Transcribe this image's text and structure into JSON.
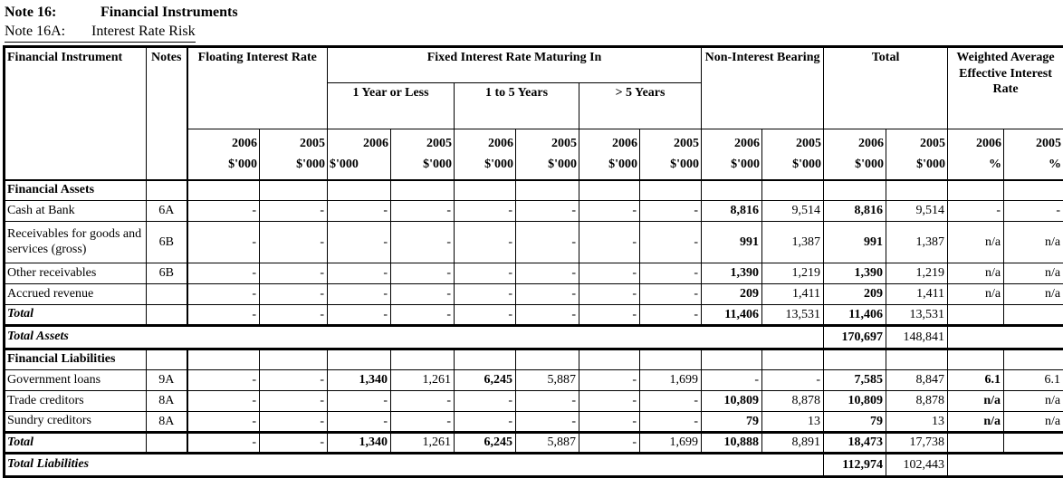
{
  "page": {
    "title": {
      "note_label": "Note 16:",
      "text": "Financial Instruments"
    },
    "subtitle": {
      "note_label": "Note 16A:",
      "text": "Interest Rate Risk"
    }
  },
  "table": {
    "col_headers": {
      "financial_instrument": "Financial Instrument",
      "notes": "Notes",
      "floating": "Floating Interest Rate",
      "fixed": "Fixed Interest Rate Maturing In",
      "sub_1y": "1 Year or Less",
      "sub_1to5": "1 to 5 Years",
      "sub_gt5": "> 5 Years",
      "non_interest": "Non-Interest Bearing",
      "total": "Total",
      "weighted": "Weighted Average Effective Interest Rate",
      "year_2006": "2006",
      "year_2005": "2005",
      "unit_thousands": "$'000",
      "unit_percent": "%"
    },
    "value_column_keys": [
      "floating-2006",
      "floating-2005",
      "1y-2006",
      "1y-2005",
      "1to5-2006",
      "1to5-2005",
      "gt5-2006",
      "gt5-2005",
      "nib-2006",
      "nib-2005",
      "total-2006",
      "total-2005",
      "wa-2006",
      "wa-2005"
    ],
    "rows": [
      {
        "type": "section",
        "sec": "a",
        "label": "Financial Assets"
      },
      {
        "type": "data",
        "sec": "a",
        "label": "Cash at Bank",
        "note": "6A",
        "values": [
          "-",
          "-",
          "-",
          "-",
          "-",
          "-",
          "-",
          "-",
          "8,816",
          "9,514",
          "8,816",
          "9,514",
          "-",
          "-"
        ]
      },
      {
        "type": "data",
        "sec": "a",
        "tall": true,
        "label": "Receivables for goods and services (gross)",
        "note": "6B",
        "values": [
          "-",
          "-",
          "-",
          "-",
          "-",
          "-",
          "-",
          "-",
          "991",
          "1,387",
          "991",
          "1,387",
          "n/a",
          "n/a"
        ]
      },
      {
        "type": "data",
        "sec": "a",
        "label": "Other receivables",
        "note": "6B",
        "values": [
          "-",
          "-",
          "-",
          "-",
          "-",
          "-",
          "-",
          "-",
          "1,390",
          "1,219",
          "1,390",
          "1,219",
          "n/a",
          "n/a"
        ]
      },
      {
        "type": "data",
        "sec": "a",
        "label": "Accrued revenue",
        "note": "",
        "values": [
          "-",
          "-",
          "-",
          "-",
          "-",
          "-",
          "-",
          "-",
          "209",
          "1,411",
          "209",
          "1,411",
          "n/a",
          "n/a"
        ]
      },
      {
        "type": "total",
        "sec": "a",
        "label": "Total",
        "note": "",
        "values": [
          "-",
          "-",
          "-",
          "-",
          "-",
          "-",
          "-",
          "-",
          "11,406",
          "13,531",
          "11,406",
          "13,531",
          "",
          ""
        ]
      },
      {
        "type": "grand",
        "sec": "a",
        "label": "Total Assets",
        "total_2006": "170,697",
        "total_2005": "148,841"
      },
      {
        "type": "section",
        "sec": "l",
        "label": "Financial Liabilities"
      },
      {
        "type": "data",
        "sec": "l",
        "label": "Government loans",
        "note": "9A",
        "values": [
          "-",
          "-",
          "1,340",
          "1,261",
          "6,245",
          "5,887",
          "-",
          "1,699",
          "-",
          "-",
          "7,585",
          "8,847",
          "6.1",
          "6.1"
        ]
      },
      {
        "type": "data",
        "sec": "l",
        "label": "Trade creditors",
        "note": "8A",
        "values": [
          "-",
          "-",
          "-",
          "-",
          "-",
          "-",
          "-",
          "-",
          "10,809",
          "8,878",
          "10,809",
          "8,878",
          "n/a",
          "n/a"
        ]
      },
      {
        "type": "data",
        "sec": "l",
        "label": "Sundry creditors",
        "note": "8A",
        "values": [
          "-",
          "-",
          "-",
          "-",
          "-",
          "-",
          "-",
          "-",
          "79",
          "13",
          "79",
          "13",
          "n/a",
          "n/a"
        ]
      },
      {
        "type": "total",
        "sec": "l",
        "thick_top": true,
        "label": "Total",
        "note": "",
        "values": [
          "-",
          "-",
          "1,340",
          "1,261",
          "6,245",
          "5,887",
          "-",
          "1,699",
          "10,888",
          "8,891",
          "18,473",
          "17,738",
          "",
          ""
        ]
      },
      {
        "type": "grand",
        "sec": "l",
        "label": "Total Liabilities",
        "total_2006": "112,974",
        "total_2005": "102,443"
      }
    ]
  }
}
